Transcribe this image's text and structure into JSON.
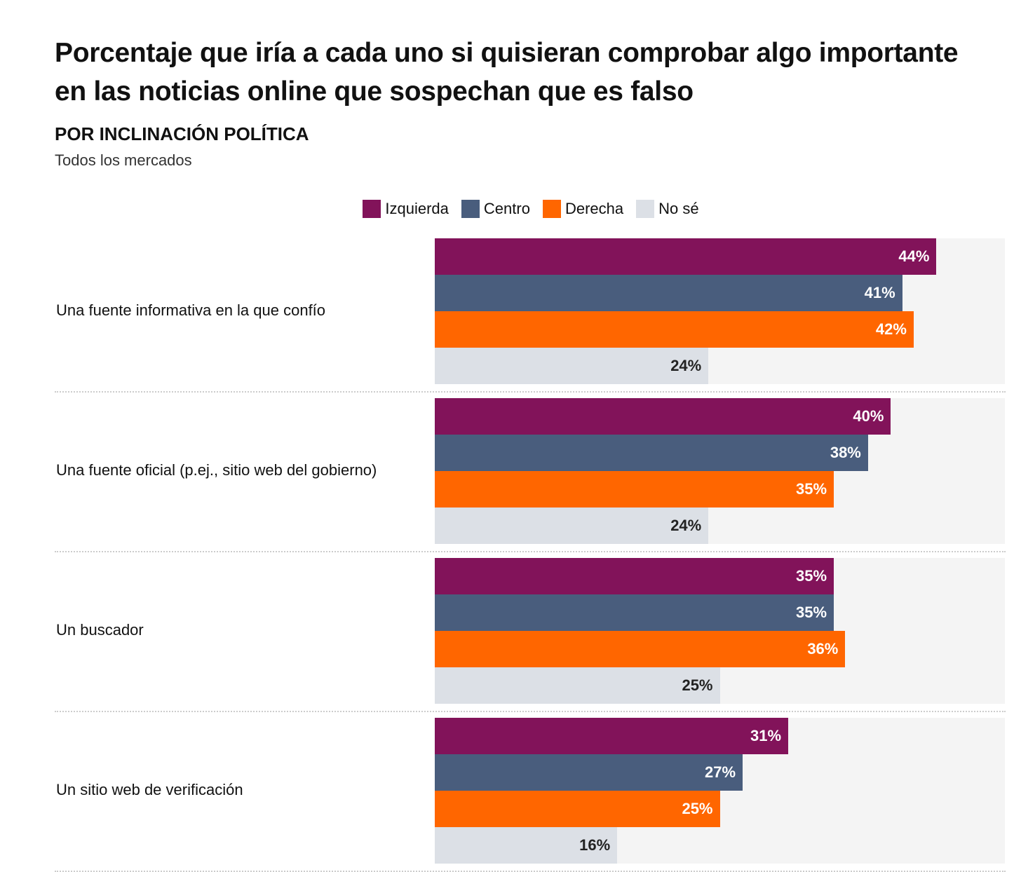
{
  "chart_data": {
    "type": "bar",
    "orientation": "horizontal",
    "title": "Porcentaje que iría a cada uno si quisieran comprobar algo importante en las noticias online que sospechan que es falso",
    "subtitle": "POR INCLINACIÓN POLÍTICA",
    "note": "Todos los mercados",
    "xlim": [
      0,
      50
    ],
    "legend_position": "top-center",
    "categories": [
      "Una fuente informativa en la que confío",
      "Una fuente oficial (p.ej., sitio web del gobierno)",
      "Un buscador",
      "Un sitio web de verificación"
    ],
    "series": [
      {
        "name": "Izquierda",
        "color": "#82135a",
        "text_color": "#ffffff",
        "values": [
          44,
          40,
          35,
          31
        ]
      },
      {
        "name": "Centro",
        "color": "#495d7d",
        "text_color": "#ffffff",
        "values": [
          41,
          38,
          35,
          27
        ]
      },
      {
        "name": "Derecha",
        "color": "#ff6600",
        "text_color": "#ffffff",
        "values": [
          42,
          35,
          36,
          25
        ]
      },
      {
        "name": "No sé",
        "color": "#dce0e6",
        "text_color": "#222222",
        "values": [
          24,
          24,
          25,
          16
        ]
      }
    ],
    "value_suffix": "%"
  }
}
